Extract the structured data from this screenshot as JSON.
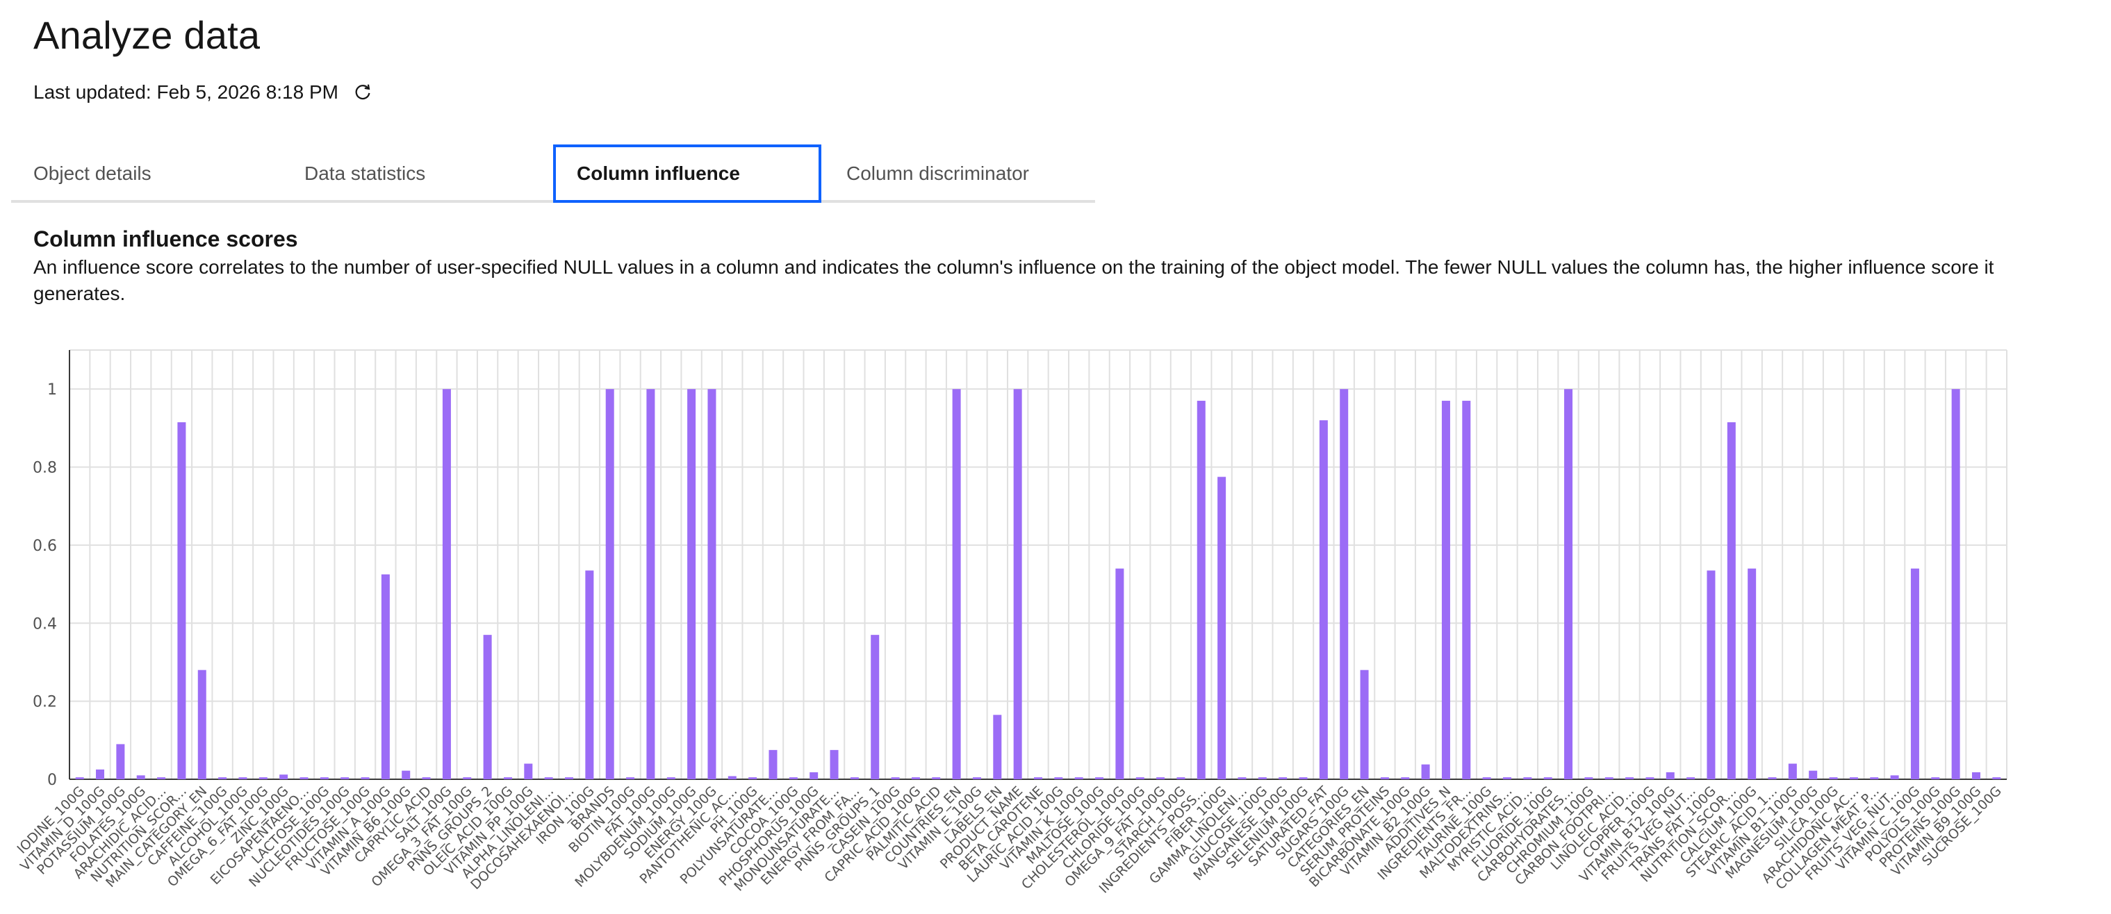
{
  "header": {
    "title": "Analyze data",
    "last_updated": "Last updated: Feb 5, 2026 8:18 PM"
  },
  "tabs": [
    {
      "label": "Object details",
      "active": false
    },
    {
      "label": "Data statistics",
      "active": false
    },
    {
      "label": "Column influence",
      "active": true
    },
    {
      "label": "Column discriminator",
      "active": false
    }
  ],
  "section": {
    "title": "Column influence scores",
    "description": "An influence score correlates to the number of user-specified NULL values in a column and indicates the column's influence on the training of the object model. The fewer NULL values the column has, the higher influence score it generates."
  },
  "colors": {
    "bar": "#9b6cf6",
    "grid": "#e0e0e0",
    "active_tab_border": "#0f62fe"
  },
  "icons": {
    "refresh": "refresh-icon"
  },
  "chart_data": {
    "type": "bar",
    "categories": [
      "IODINE_100G",
      "VITAMIN_D_100G",
      "POTASSIUM_100G",
      "FOLATES_100G",
      "ARACHIDIC_ACID...",
      "NUTRITION_SCOR...",
      "MAIN_CATEGORY_EN",
      "CAFFEINE_100G",
      "ALCOHOL_100G",
      "OMEGA_6_FAT_100G",
      "ZINC_100G",
      "EICOSAPENTAENO...",
      "LACTOSE_100G",
      "NUCLEOTIDES_100G",
      "FRUCTOSE_100G",
      "VITAMIN_A_100G",
      "VITAMIN_B6_100G",
      "CAPRYLIC_ACID",
      "SALT_100G",
      "OMEGA_3_FAT_100G",
      "PNNS_GROUPS_2",
      "OLEIC_ACID_100G",
      "VITAMIN_PP_100G",
      "ALPHA_LINOLENI...",
      "DOCOSAHEXAENOI...",
      "IRON_100G",
      "BRANDS",
      "BIOTIN_100G",
      "FAT_100G",
      "MOLYBDENUM_100G",
      "SODIUM_100G",
      "ENERGY_100G",
      "PANTOTHENIC_AC...",
      "PH_100G",
      "POLYUNSATURATE...",
      "COCOA_100G",
      "PHOSPHORUS_100G",
      "MONOUNSATURATE...",
      "ENERGY_FROM_FA...",
      "PNNS_GROUPS_1",
      "CASEIN_100G",
      "CAPRIC_ACID_100G",
      "PALMITIC_ACID",
      "COUNTRIES_EN",
      "VITAMIN_E_100G",
      "LABELS_EN",
      "PRODUCT_NAME",
      "BETA_CAROTENE",
      "LAURIC_ACID_100G",
      "VITAMIN_K_100G",
      "MALTOSE_100G",
      "CHOLESTEROL_100G",
      "CHLORIDE_100G",
      "OMEGA_9_FAT_100G",
      "STARCH_100G",
      "INGREDIENTS_POSS...",
      "FIBER_100G",
      "GAMMA_LINOLENI...",
      "GLUCOSE_100G",
      "MANGANESE_100G",
      "SELENIUM_100G",
      "SATURATED_FAT",
      "SUGARS_100G",
      "CATEGORIES_EN",
      "SERUM_PROTEINS",
      "BICARBONATE_100G",
      "VITAMIN_B2_100G",
      "ADDITIVES_N",
      "INGREDIENTS_FR...",
      "TAURINE_100G",
      "MALTODEXTRINS...",
      "MYRISTIC_ACID...",
      "FLUORIDE_100G",
      "CARBOHYDRATES...",
      "CHROMIUM_100G",
      "CARBON_FOOTPRI...",
      "LINOLEIC_ACID...",
      "COPPER_100G",
      "VITAMIN_B12_100G",
      "FRUITS_VEG_NUT...",
      "TRANS_FAT_100G",
      "NUTRITION_SCOR...",
      "CALCIUM_100G",
      "STEARIC_ACID_1...",
      "VITAMIN_B1_100G",
      "MAGNESIUM_100G",
      "SILICA_100G",
      "ARACHIDONIC_AC...",
      "COLLAGEN_MEAT_P...",
      "FRUITS_VEG_NUT...",
      "VITAMIN_C_100G",
      "POLYOLS_100G",
      "PROTEINS_100G",
      "VITAMIN_B9_100G",
      "SUCROSE_100G"
    ],
    "values": [
      0.005,
      0.025,
      0.09,
      0.01,
      0.005,
      0.915,
      0.28,
      0.005,
      0.005,
      0.005,
      0.012,
      0.005,
      0.005,
      0.005,
      0.005,
      0.525,
      0.022,
      0.005,
      1,
      0.005,
      0.37,
      0.005,
      0.04,
      0.005,
      0.005,
      0.535,
      1,
      0.005,
      1,
      0.005,
      1,
      1,
      0.008,
      0.005,
      0.075,
      0.005,
      0.018,
      0.075,
      0.005,
      0.37,
      0.005,
      0.005,
      0.005,
      1,
      0.005,
      0.165,
      1,
      0.005,
      0.005,
      0.005,
      0.005,
      0.54,
      0.005,
      0.005,
      0.005,
      0.97,
      0.775,
      0.005,
      0.005,
      0.005,
      0.005,
      0.92,
      1,
      0.28,
      0.005,
      0.005,
      0.038,
      0.97,
      0.97,
      0.005,
      0.005,
      0.005,
      0.005,
      1,
      0.005,
      0.005,
      0.005,
      0.005,
      0.018,
      0.005,
      0.535,
      0.915,
      0.54,
      0.005,
      0.04,
      0.022,
      0.005,
      0.005,
      0.005,
      0.01,
      0.54,
      0.005,
      1,
      0.018,
      0.005
    ],
    "ylim": [
      0,
      1.1
    ],
    "yticks": [
      "0",
      "0.2",
      "0.4",
      "0.6",
      "0.8",
      "1"
    ],
    "grid": true,
    "title": "",
    "xlabel": "",
    "ylabel": ""
  }
}
